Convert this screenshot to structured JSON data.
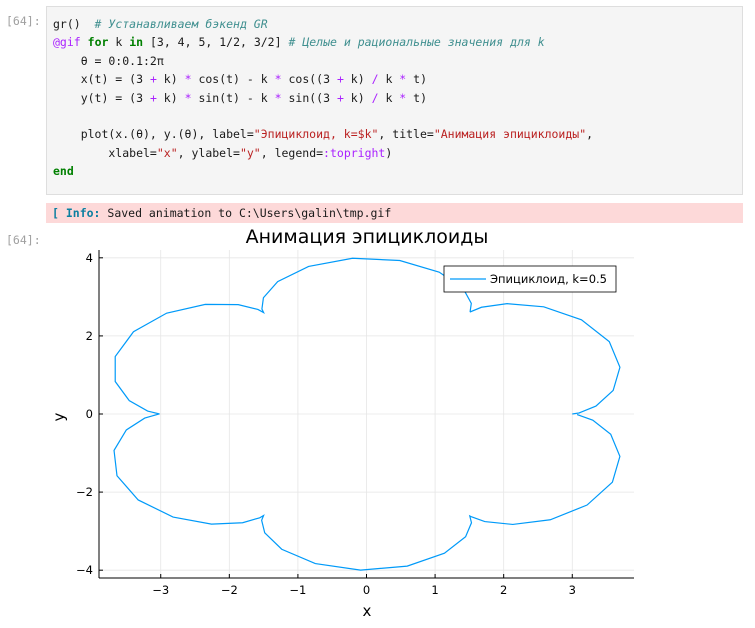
{
  "input_prompt": "[64]:",
  "output_prompt": "[64]:",
  "code_lines": [
    [
      {
        "t": "gr()  ",
        "c": "n"
      },
      {
        "t": "# Устанавливаем бэкенд GR",
        "c": "c"
      }
    ],
    [
      {
        "t": "@gif",
        "c": "m"
      },
      {
        "t": " ",
        "c": "n"
      },
      {
        "t": "for",
        "c": "k"
      },
      {
        "t": " k ",
        "c": "n"
      },
      {
        "t": "in",
        "c": "k"
      },
      {
        "t": " [3, 4, 5, 1/2, 3/2] ",
        "c": "n"
      },
      {
        "t": "# Целые и рациональные значения для k",
        "c": "c"
      }
    ],
    [
      {
        "t": "    θ = 0:0.1:2π",
        "c": "n"
      }
    ],
    [
      {
        "t": "    x(t) = (3 ",
        "c": "n"
      },
      {
        "t": "+",
        "c": "o"
      },
      {
        "t": " k) ",
        "c": "n"
      },
      {
        "t": "*",
        "c": "o"
      },
      {
        "t": " cos(t) - k ",
        "c": "n"
      },
      {
        "t": "*",
        "c": "o"
      },
      {
        "t": " cos((3 ",
        "c": "n"
      },
      {
        "t": "+",
        "c": "o"
      },
      {
        "t": " k) ",
        "c": "n"
      },
      {
        "t": "/",
        "c": "o"
      },
      {
        "t": " k ",
        "c": "n"
      },
      {
        "t": "*",
        "c": "o"
      },
      {
        "t": " t)",
        "c": "n"
      }
    ],
    [
      {
        "t": "    y(t) = (3 ",
        "c": "n"
      },
      {
        "t": "+",
        "c": "o"
      },
      {
        "t": " k) ",
        "c": "n"
      },
      {
        "t": "*",
        "c": "o"
      },
      {
        "t": " sin(t) - k ",
        "c": "n"
      },
      {
        "t": "*",
        "c": "o"
      },
      {
        "t": " sin((3 ",
        "c": "n"
      },
      {
        "t": "+",
        "c": "o"
      },
      {
        "t": " k) ",
        "c": "n"
      },
      {
        "t": "/",
        "c": "o"
      },
      {
        "t": " k ",
        "c": "n"
      },
      {
        "t": "*",
        "c": "o"
      },
      {
        "t": " t)",
        "c": "n"
      }
    ],
    [
      {
        "t": "",
        "c": "n"
      }
    ],
    [
      {
        "t": "    plot(x.(θ), y.(θ), label=",
        "c": "n"
      },
      {
        "t": "\"Эпициклоид, k=$k\"",
        "c": "s"
      },
      {
        "t": ", title=",
        "c": "n"
      },
      {
        "t": "\"Анимация эпициклоиды\"",
        "c": "s"
      },
      {
        "t": ",",
        "c": "n"
      }
    ],
    [
      {
        "t": "        xlabel=",
        "c": "n"
      },
      {
        "t": "\"x\"",
        "c": "s"
      },
      {
        "t": ", ylabel=",
        "c": "n"
      },
      {
        "t": "\"y\"",
        "c": "s"
      },
      {
        "t": ", legend=",
        "c": "n"
      },
      {
        "t": ":topright",
        "c": "m"
      },
      {
        "t": ")",
        "c": "n"
      }
    ],
    [
      {
        "t": "end",
        "c": "k"
      }
    ]
  ],
  "info": {
    "tag": "[ Info: ",
    "message": "Saved animation to C:\\Users\\galin\\tmp.gif"
  },
  "chart_data": {
    "type": "line",
    "title": "Анимация эпициклоиды",
    "xlabel": "x",
    "ylabel": "y",
    "xlim": [
      -3.9,
      3.9
    ],
    "ylim": [
      -4.2,
      4.2
    ],
    "xticks": [
      -3,
      -2,
      -1,
      0,
      1,
      2,
      3
    ],
    "yticks": [
      -4,
      -2,
      0,
      2,
      4
    ],
    "tick_labels_x": [
      "−3",
      "−2",
      "−1",
      "0",
      "1",
      "2",
      "3"
    ],
    "tick_labels_y": [
      "−4",
      "−2",
      "0",
      "2",
      "4"
    ],
    "grid": true,
    "legend": "top-right",
    "series": [
      {
        "name": "Эпициклоид, k=0.5",
        "color": "#009af9",
        "formula": "x(t)=(3+k)cos(t)-k*cos((3+k)/k*t), y(t)=(3+k)sin(t)-k*sin((3+k)/k*t)",
        "k": 0.5,
        "theta": {
          "start": 0,
          "step": 0.1,
          "stop": 6.283185307
        }
      }
    ]
  },
  "colors": {
    "line": "#009af9",
    "info_bg": "#fdd9d9",
    "code_bg": "#f5f5f5"
  }
}
